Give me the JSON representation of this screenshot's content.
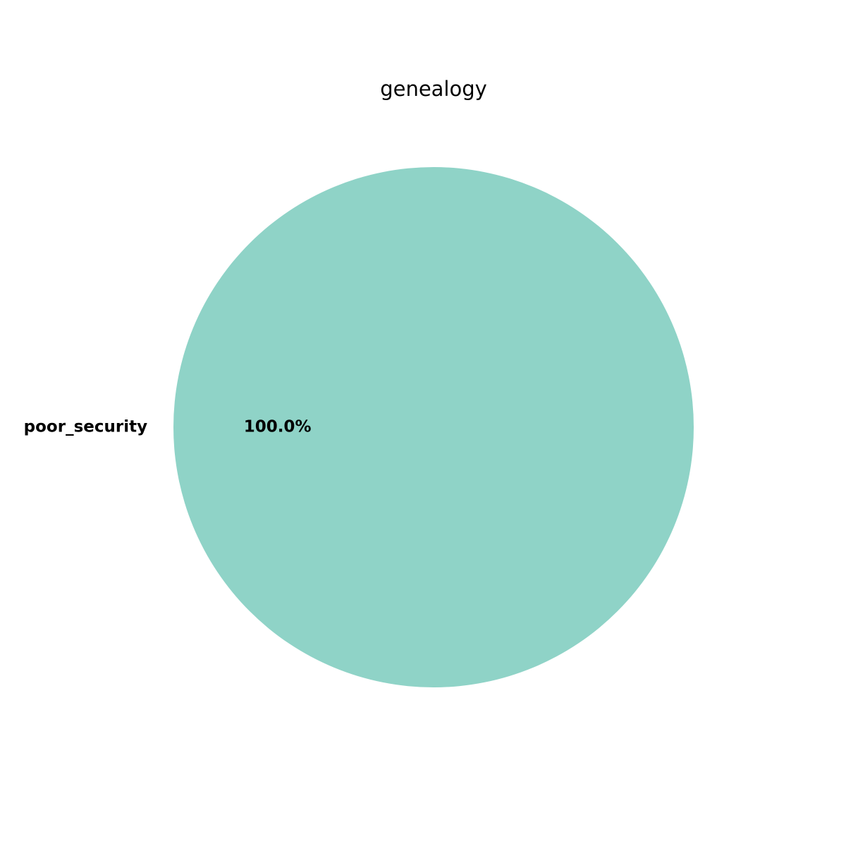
{
  "chart_data": {
    "type": "pie",
    "title": "genealogy",
    "slices": [
      {
        "label": "poor_security",
        "value": 100.0,
        "pct_label": "100.0%",
        "color": "#8fd3c7"
      }
    ],
    "legend": "none"
  }
}
